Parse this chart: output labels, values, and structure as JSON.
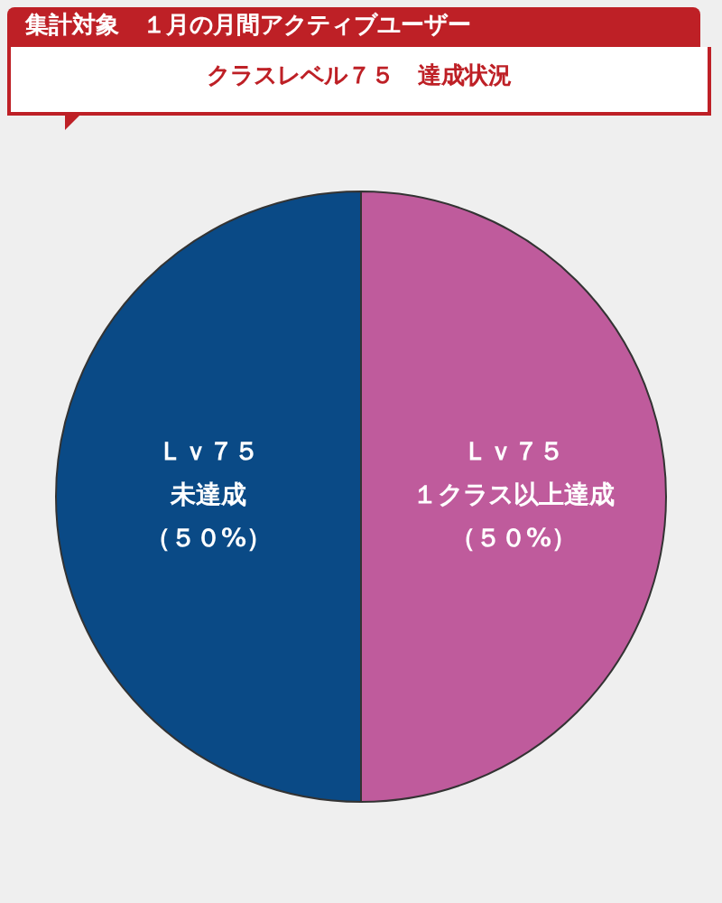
{
  "chart_data": {
    "type": "pie",
    "title": "集計対象　１月の月間アクティブユーザー",
    "subtitle": "クラスレベル７５　達成状況",
    "categories": [
      "Ｌｖ７５１クラス以上達成",
      "Ｌｖ７５未達成"
    ],
    "values": [
      50,
      50
    ],
    "colors": [
      "#bf5b9c",
      "#0a4a86"
    ],
    "value_labels": [
      "（５０%）",
      "（５０%）"
    ],
    "legend": false
  }
}
